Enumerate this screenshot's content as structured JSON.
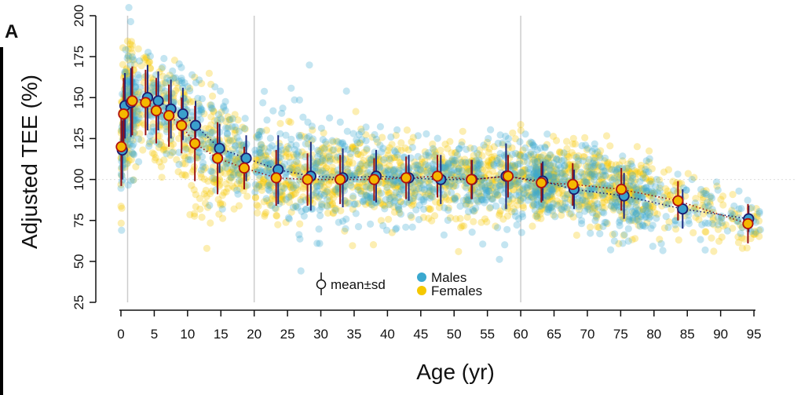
{
  "panel_label": "A",
  "colors": {
    "males": "#3aa8cf",
    "females": "#f5c800",
    "males_mean_fill": "#3a9fcc",
    "males_mean_stroke": "#1c1c6e",
    "males_sd_line": "#1c2a80",
    "females_mean_fill": "#f5b800",
    "females_mean_stroke": "#b01010",
    "females_sd_line": "#991111",
    "axis": "#111111",
    "vline": "#cccccc"
  },
  "legend": {
    "mean_sd": "mean±sd",
    "males": "Males",
    "females": "Females"
  },
  "chart_data": {
    "type": "scatter",
    "xlabel": "Age (yr)",
    "ylabel": "Adjusted TEE (%)",
    "xlim": [
      0,
      100
    ],
    "ylim": [
      25,
      200
    ],
    "x_ticks": [
      0,
      5,
      10,
      15,
      20,
      25,
      30,
      35,
      40,
      45,
      50,
      55,
      60,
      65,
      70,
      75,
      80,
      85,
      90,
      95
    ],
    "y_ticks": [
      25,
      50,
      75,
      100,
      125,
      150,
      175,
      200
    ],
    "reference_line_y": 100,
    "vertical_lines_x": [
      1,
      20,
      60
    ],
    "series": [
      {
        "name": "Males",
        "means": [
          {
            "x": 0.2,
            "y": 118,
            "sd": 18
          },
          {
            "x": 0.6,
            "y": 145,
            "sd": 20
          },
          {
            "x": 1.5,
            "y": 147,
            "sd": 21
          },
          {
            "x": 4,
            "y": 150,
            "sd": 20
          },
          {
            "x": 5.6,
            "y": 148,
            "sd": 18
          },
          {
            "x": 7.5,
            "y": 143,
            "sd": 18
          },
          {
            "x": 9.3,
            "y": 140,
            "sd": 16
          },
          {
            "x": 11.2,
            "y": 133,
            "sd": 15
          },
          {
            "x": 14.8,
            "y": 119,
            "sd": 15
          },
          {
            "x": 18.8,
            "y": 113,
            "sd": 14
          },
          {
            "x": 23.6,
            "y": 106,
            "sd": 21
          },
          {
            "x": 28.5,
            "y": 102,
            "sd": 21
          },
          {
            "x": 33.3,
            "y": 101,
            "sd": 18
          },
          {
            "x": 38.3,
            "y": 102,
            "sd": 16
          },
          {
            "x": 43.2,
            "y": 101,
            "sd": 14
          },
          {
            "x": 48,
            "y": 100,
            "sd": 15
          },
          {
            "x": 52.7,
            "y": 100,
            "sd": 12
          },
          {
            "x": 57.8,
            "y": 102,
            "sd": 20
          },
          {
            "x": 63.3,
            "y": 99,
            "sd": 12
          },
          {
            "x": 68,
            "y": 94,
            "sd": 12
          },
          {
            "x": 75.5,
            "y": 90,
            "sd": 14
          },
          {
            "x": 84.3,
            "y": 82,
            "sd": 12
          },
          {
            "x": 94.2,
            "y": 76,
            "sd": 8
          }
        ]
      },
      {
        "name": "Females",
        "means": [
          {
            "x": 0.05,
            "y": 120,
            "sd": 24
          },
          {
            "x": 0.4,
            "y": 140,
            "sd": 22
          },
          {
            "x": 1.7,
            "y": 148,
            "sd": 21
          },
          {
            "x": 3.7,
            "y": 147,
            "sd": 20
          },
          {
            "x": 5.3,
            "y": 142,
            "sd": 20
          },
          {
            "x": 7.2,
            "y": 139,
            "sd": 19
          },
          {
            "x": 9.1,
            "y": 133,
            "sd": 17
          },
          {
            "x": 11.1,
            "y": 122,
            "sd": 23
          },
          {
            "x": 14.5,
            "y": 113,
            "sd": 22
          },
          {
            "x": 18.5,
            "y": 107,
            "sd": 13
          },
          {
            "x": 23.3,
            "y": 101,
            "sd": 17
          },
          {
            "x": 28,
            "y": 100,
            "sd": 16
          },
          {
            "x": 32.9,
            "y": 100,
            "sd": 15
          },
          {
            "x": 38,
            "y": 100,
            "sd": 13
          },
          {
            "x": 42.8,
            "y": 101,
            "sd": 13
          },
          {
            "x": 47.5,
            "y": 102,
            "sd": 13
          },
          {
            "x": 52.6,
            "y": 100,
            "sd": 12
          },
          {
            "x": 58.1,
            "y": 102,
            "sd": 13
          },
          {
            "x": 63.1,
            "y": 98,
            "sd": 12
          },
          {
            "x": 67.8,
            "y": 97,
            "sd": 13
          },
          {
            "x": 75.1,
            "y": 94,
            "sd": 13
          },
          {
            "x": 83.6,
            "y": 87,
            "sd": 12
          },
          {
            "x": 94.1,
            "y": 73,
            "sd": 12
          }
        ]
      }
    ]
  }
}
